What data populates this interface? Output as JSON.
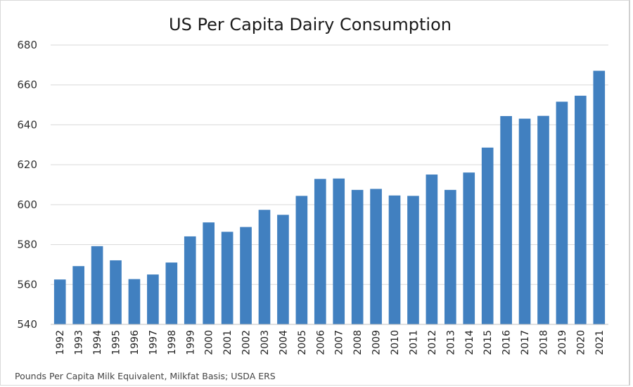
{
  "chart_data": {
    "type": "bar",
    "title": "US Per Capita Dairy Consumption",
    "xlabel": "",
    "ylabel": "",
    "note": "Pounds Per Capita Milk Equivalent, Milkfat Basis; USDA ERS",
    "ylim": [
      540,
      680
    ],
    "yticks": [
      540,
      560,
      580,
      600,
      620,
      640,
      660,
      680
    ],
    "grid": true,
    "legend": "none",
    "bar_color": "#4180c0",
    "categories": [
      "1992",
      "1993",
      "1994",
      "1995",
      "1996",
      "1997",
      "1998",
      "1999",
      "2000",
      "2001",
      "2002",
      "2003",
      "2004",
      "2005",
      "2006",
      "2007",
      "2008",
      "2009",
      "2010",
      "2011",
      "2012",
      "2013",
      "2014",
      "2015",
      "2016",
      "2017",
      "2018",
      "2019",
      "2020",
      "2021"
    ],
    "values": [
      562.5,
      569.2,
      579.2,
      572.1,
      562.7,
      565.0,
      571.0,
      584.1,
      591.1,
      586.4,
      588.8,
      597.4,
      594.9,
      604.4,
      612.9,
      613.1,
      607.4,
      607.9,
      604.6,
      604.4,
      615.1,
      607.4,
      616.1,
      628.6,
      644.4,
      643.1,
      644.5,
      651.6,
      654.6,
      667.1
    ]
  }
}
